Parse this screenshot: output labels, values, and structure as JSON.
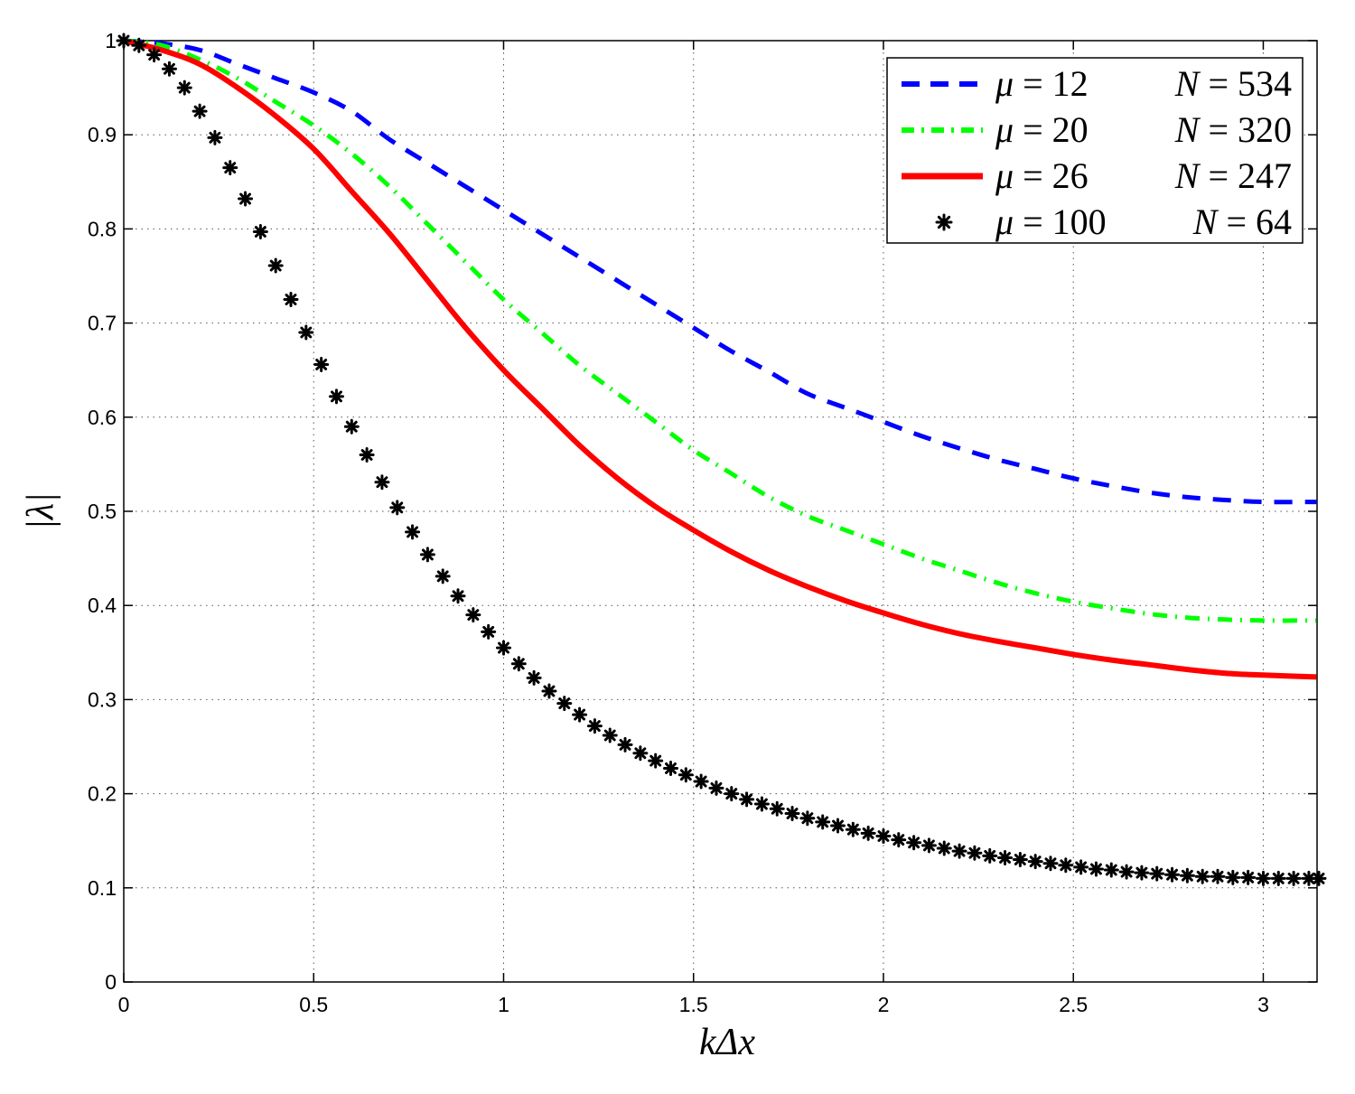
{
  "chart_data": {
    "type": "line",
    "title": "",
    "xlabel": "kΔx",
    "ylabel": "|λ|",
    "xlim": [
      0,
      3.14159
    ],
    "ylim": [
      0,
      1
    ],
    "xticks": [
      0,
      0.5,
      1,
      1.5,
      2,
      2.5,
      3
    ],
    "yticks": [
      0,
      0.1,
      0.2,
      0.3,
      0.4,
      0.5,
      0.6,
      0.7,
      0.8,
      0.9,
      1
    ],
    "xtick_labels": [
      "0",
      "0.5",
      "1",
      "1.5",
      "2",
      "2.5",
      "3"
    ],
    "ytick_labels": [
      "0",
      "0.1",
      "0.2",
      "0.3",
      "0.4",
      "0.5",
      "0.6",
      "0.7",
      "0.8",
      "0.9",
      "1"
    ],
    "grid": true,
    "legend_position": "top-right",
    "series": [
      {
        "name": "μ = 12   N = 534",
        "mu": "12",
        "N": "534",
        "color": "#0000ff",
        "style": "dashed",
        "x": [
          0,
          0.1,
          0.2,
          0.3,
          0.4,
          0.5,
          0.6,
          0.7,
          0.8,
          0.9,
          1.0,
          1.1,
          1.2,
          1.3,
          1.4,
          1.5,
          1.6,
          1.7,
          1.8,
          1.9,
          2.0,
          2.1,
          2.2,
          2.3,
          2.4,
          2.5,
          2.6,
          2.7,
          2.8,
          2.9,
          3.0,
          3.14
        ],
        "y": [
          1.0,
          0.997,
          0.99,
          0.975,
          0.96,
          0.945,
          0.925,
          0.895,
          0.87,
          0.845,
          0.82,
          0.795,
          0.77,
          0.745,
          0.72,
          0.695,
          0.67,
          0.648,
          0.625,
          0.61,
          0.595,
          0.58,
          0.567,
          0.555,
          0.545,
          0.535,
          0.527,
          0.52,
          0.515,
          0.512,
          0.51,
          0.51
        ]
      },
      {
        "name": "μ = 20   N = 320",
        "mu": "20",
        "N": "320",
        "color": "#00ff00",
        "style": "dashdot",
        "x": [
          0,
          0.1,
          0.2,
          0.3,
          0.4,
          0.5,
          0.6,
          0.7,
          0.8,
          0.9,
          1.0,
          1.1,
          1.2,
          1.3,
          1.4,
          1.5,
          1.6,
          1.7,
          1.8,
          1.9,
          2.0,
          2.1,
          2.2,
          2.3,
          2.4,
          2.5,
          2.6,
          2.7,
          2.8,
          2.9,
          3.0,
          3.14
        ],
        "y": [
          1.0,
          0.995,
          0.98,
          0.96,
          0.935,
          0.91,
          0.88,
          0.845,
          0.805,
          0.765,
          0.725,
          0.69,
          0.655,
          0.625,
          0.595,
          0.565,
          0.54,
          0.515,
          0.495,
          0.48,
          0.465,
          0.45,
          0.437,
          0.424,
          0.413,
          0.404,
          0.397,
          0.391,
          0.387,
          0.385,
          0.384,
          0.384
        ]
      },
      {
        "name": "μ = 26   N = 247",
        "mu": "26",
        "N": "247",
        "color": "#ff0000",
        "style": "solid",
        "x": [
          0,
          0.1,
          0.2,
          0.3,
          0.4,
          0.5,
          0.6,
          0.7,
          0.8,
          0.9,
          1.0,
          1.1,
          1.2,
          1.3,
          1.4,
          1.5,
          1.6,
          1.7,
          1.8,
          1.9,
          2.0,
          2.1,
          2.2,
          2.3,
          2.4,
          2.5,
          2.6,
          2.7,
          2.8,
          2.9,
          3.0,
          3.14
        ],
        "y": [
          1.0,
          0.99,
          0.975,
          0.95,
          0.92,
          0.885,
          0.84,
          0.795,
          0.745,
          0.695,
          0.65,
          0.61,
          0.57,
          0.535,
          0.505,
          0.48,
          0.457,
          0.437,
          0.42,
          0.405,
          0.392,
          0.38,
          0.37,
          0.362,
          0.355,
          0.348,
          0.342,
          0.337,
          0.332,
          0.328,
          0.326,
          0.324
        ]
      },
      {
        "name": "μ = 100  N = 64",
        "mu": "100",
        "N": "64",
        "color": "#000000",
        "style": "asterisk",
        "x": [
          0,
          0.04,
          0.08,
          0.12,
          0.16,
          0.2,
          0.24,
          0.28,
          0.32,
          0.36,
          0.4,
          0.44,
          0.48,
          0.52,
          0.56,
          0.6,
          0.64,
          0.68,
          0.72,
          0.76,
          0.8,
          0.84,
          0.88,
          0.92,
          0.96,
          1.0,
          1.04,
          1.08,
          1.12,
          1.16,
          1.2,
          1.24,
          1.28,
          1.32,
          1.36,
          1.4,
          1.44,
          1.48,
          1.52,
          1.56,
          1.6,
          1.64,
          1.68,
          1.72,
          1.76,
          1.8,
          1.84,
          1.88,
          1.92,
          1.96,
          2.0,
          2.04,
          2.08,
          2.12,
          2.16,
          2.2,
          2.24,
          2.28,
          2.32,
          2.36,
          2.4,
          2.44,
          2.48,
          2.52,
          2.56,
          2.6,
          2.64,
          2.68,
          2.72,
          2.76,
          2.8,
          2.84,
          2.88,
          2.92,
          2.96,
          3.0,
          3.04,
          3.08,
          3.12,
          3.16
        ],
        "y": [
          1.0,
          0.995,
          0.985,
          0.97,
          0.95,
          0.925,
          0.897,
          0.865,
          0.832,
          0.797,
          0.761,
          0.725,
          0.69,
          0.656,
          0.622,
          0.59,
          0.56,
          0.531,
          0.504,
          0.478,
          0.454,
          0.431,
          0.41,
          0.39,
          0.372,
          0.355,
          0.338,
          0.323,
          0.309,
          0.296,
          0.284,
          0.272,
          0.262,
          0.252,
          0.243,
          0.235,
          0.227,
          0.22,
          0.213,
          0.206,
          0.2,
          0.194,
          0.189,
          0.184,
          0.179,
          0.174,
          0.17,
          0.166,
          0.162,
          0.158,
          0.155,
          0.151,
          0.148,
          0.145,
          0.142,
          0.139,
          0.137,
          0.134,
          0.132,
          0.13,
          0.128,
          0.126,
          0.124,
          0.122,
          0.12,
          0.119,
          0.117,
          0.116,
          0.115,
          0.114,
          0.113,
          0.112,
          0.112,
          0.111,
          0.111,
          0.11,
          0.11,
          0.11,
          0.11,
          0.11
        ]
      }
    ]
  }
}
